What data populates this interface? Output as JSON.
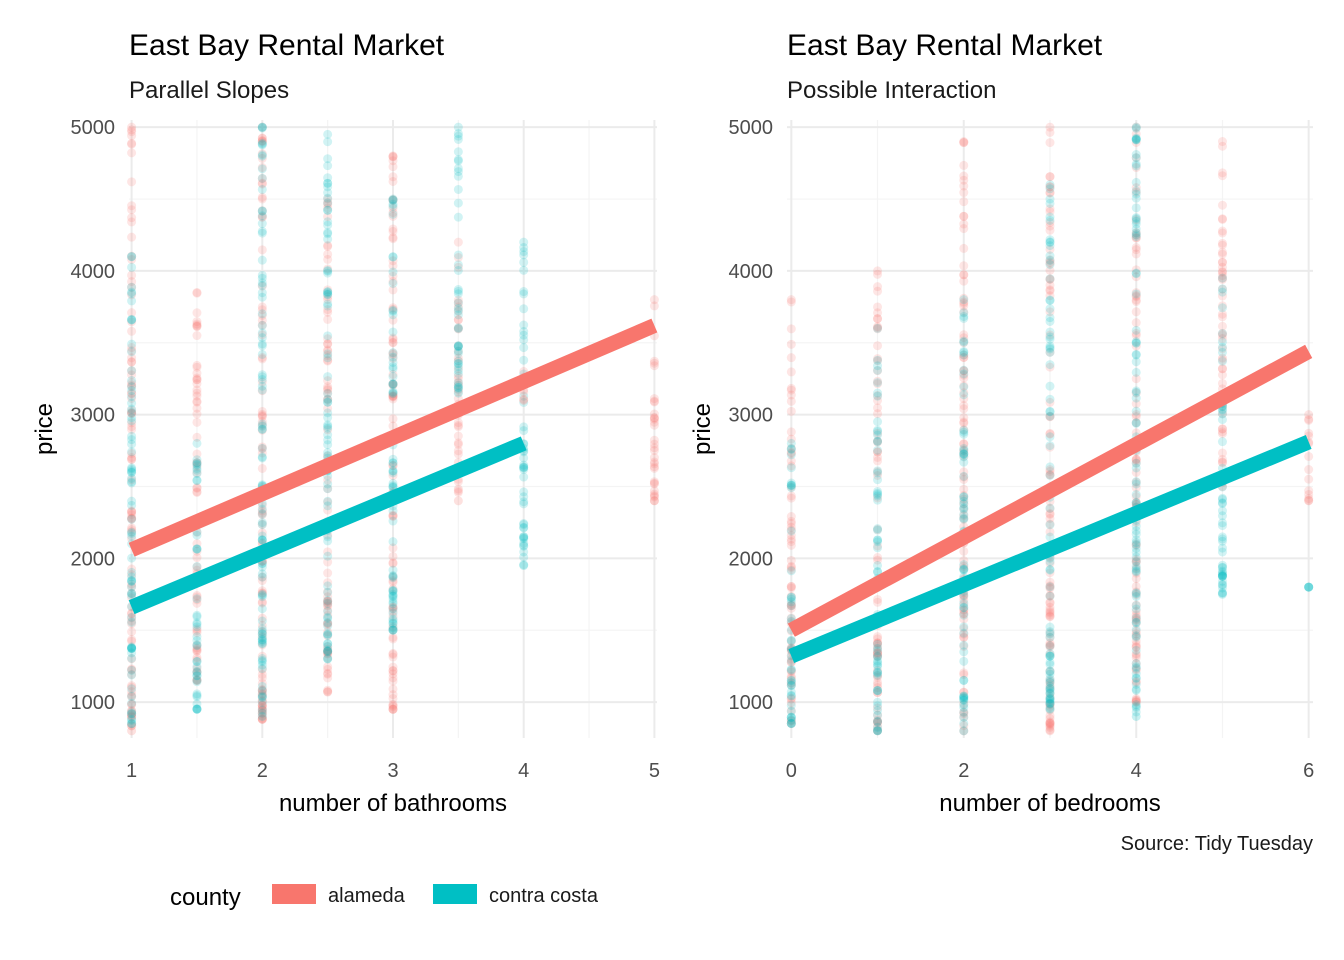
{
  "colors": {
    "alameda": "#F8766D",
    "contra_costa": "#00BFC4",
    "grid": "#ebebeb"
  },
  "caption": "Source: Tidy Tuesday",
  "legend": {
    "title": "county",
    "items": [
      {
        "label": "alameda",
        "color": "#F8766D"
      },
      {
        "label": "contra costa",
        "color": "#00BFC4"
      }
    ]
  },
  "chart_data": [
    {
      "type": "scatter",
      "title": "East Bay Rental Market",
      "subtitle": "Parallel Slopes",
      "xlabel": "number of bathrooms",
      "ylabel": "price",
      "xlim": [
        0.98,
        5.02
      ],
      "ylim": [
        750,
        5050
      ],
      "x_ticks": [
        1,
        2,
        3,
        4,
        5
      ],
      "x_tick_labels": [
        "1",
        "2",
        "3",
        "4",
        "5"
      ],
      "x_minor_ticks": [
        1.5,
        2.5,
        3.5,
        4.5
      ],
      "y_ticks": [
        1000,
        2000,
        3000,
        4000,
        5000
      ],
      "y_tick_labels": [
        "1000",
        "2000",
        "3000",
        "4000",
        "5000"
      ],
      "y_minor_ticks": [
        1500,
        2500,
        3500,
        4500
      ],
      "grid": true,
      "point_columns": [
        {
          "x": 1,
          "county": "alameda",
          "ymin": 800,
          "ymax": 5000
        },
        {
          "x": 1,
          "county": "contra costa",
          "ymin": 850,
          "ymax": 4100
        },
        {
          "x": 1.5,
          "county": "alameda",
          "ymin": 1150,
          "ymax": 3850
        },
        {
          "x": 1.5,
          "county": "contra costa",
          "ymin": 950,
          "ymax": 2800
        },
        {
          "x": 2,
          "county": "alameda",
          "ymin": 880,
          "ymax": 5000
        },
        {
          "x": 2,
          "county": "contra costa",
          "ymin": 900,
          "ymax": 5000
        },
        {
          "x": 2.5,
          "county": "alameda",
          "ymin": 1070,
          "ymax": 4500
        },
        {
          "x": 2.5,
          "county": "contra costa",
          "ymin": 1300,
          "ymax": 4950
        },
        {
          "x": 3,
          "county": "alameda",
          "ymin": 950,
          "ymax": 4800
        },
        {
          "x": 3,
          "county": "contra costa",
          "ymin": 1500,
          "ymax": 4500
        },
        {
          "x": 3.5,
          "county": "alameda",
          "ymin": 2400,
          "ymax": 4200
        },
        {
          "x": 3.5,
          "county": "contra costa",
          "ymin": 3150,
          "ymax": 5000
        },
        {
          "x": 4,
          "county": "contra costa",
          "ymin": 1950,
          "ymax": 4200
        },
        {
          "x": 4,
          "county": "alameda",
          "ymin": 3100,
          "ymax": 3300
        },
        {
          "x": 5,
          "county": "alameda",
          "ymin": 2400,
          "ymax": 3800
        }
      ],
      "series": [
        {
          "name": "alameda",
          "color": "#F8766D",
          "x": [
            1,
            5
          ],
          "y": [
            2060,
            3620
          ]
        },
        {
          "name": "contra costa",
          "color": "#00BFC4",
          "x": [
            1,
            4
          ],
          "y": [
            1660,
            2800
          ]
        }
      ]
    },
    {
      "type": "scatter",
      "title": "East Bay Rental Market",
      "subtitle": "Possible Interaction",
      "xlabel": "number of bedrooms",
      "ylabel": "price",
      "xlim": [
        -0.05,
        6.05
      ],
      "ylim": [
        750,
        5050
      ],
      "x_ticks": [
        0,
        2,
        4,
        6
      ],
      "x_tick_labels": [
        "0",
        "2",
        "4",
        "6"
      ],
      "x_minor_ticks": [
        1,
        3,
        5
      ],
      "y_ticks": [
        1000,
        2000,
        3000,
        4000,
        5000
      ],
      "y_tick_labels": [
        "1000",
        "2000",
        "3000",
        "4000",
        "5000"
      ],
      "y_minor_ticks": [
        1500,
        2500,
        3500,
        4500
      ],
      "grid": true,
      "point_columns": [
        {
          "x": 0,
          "county": "alameda",
          "ymin": 850,
          "ymax": 3800
        },
        {
          "x": 0,
          "county": "contra costa",
          "ymin": 850,
          "ymax": 2800
        },
        {
          "x": 1,
          "county": "alameda",
          "ymin": 800,
          "ymax": 4000
        },
        {
          "x": 1,
          "county": "contra costa",
          "ymin": 800,
          "ymax": 3600
        },
        {
          "x": 2,
          "county": "alameda",
          "ymin": 800,
          "ymax": 4900
        },
        {
          "x": 2,
          "county": "contra costa",
          "ymin": 800,
          "ymax": 3800
        },
        {
          "x": 3,
          "county": "alameda",
          "ymin": 800,
          "ymax": 5000
        },
        {
          "x": 3,
          "county": "contra costa",
          "ymin": 950,
          "ymax": 4600
        },
        {
          "x": 4,
          "county": "alameda",
          "ymin": 1000,
          "ymax": 5000
        },
        {
          "x": 4,
          "county": "contra costa",
          "ymin": 900,
          "ymax": 5000
        },
        {
          "x": 5,
          "county": "alameda",
          "ymin": 2500,
          "ymax": 4900
        },
        {
          "x": 5,
          "county": "contra costa",
          "ymin": 1750,
          "ymax": 3950
        },
        {
          "x": 6,
          "county": "alameda",
          "ymin": 2400,
          "ymax": 3000
        },
        {
          "x": 6,
          "county": "contra costa",
          "ymin": 1800,
          "ymax": 1800
        }
      ],
      "series": [
        {
          "name": "alameda",
          "color": "#F8766D",
          "x": [
            0,
            6
          ],
          "y": [
            1500,
            3440
          ]
        },
        {
          "name": "contra costa",
          "color": "#00BFC4",
          "x": [
            0,
            6
          ],
          "y": [
            1320,
            2810
          ]
        }
      ]
    }
  ]
}
